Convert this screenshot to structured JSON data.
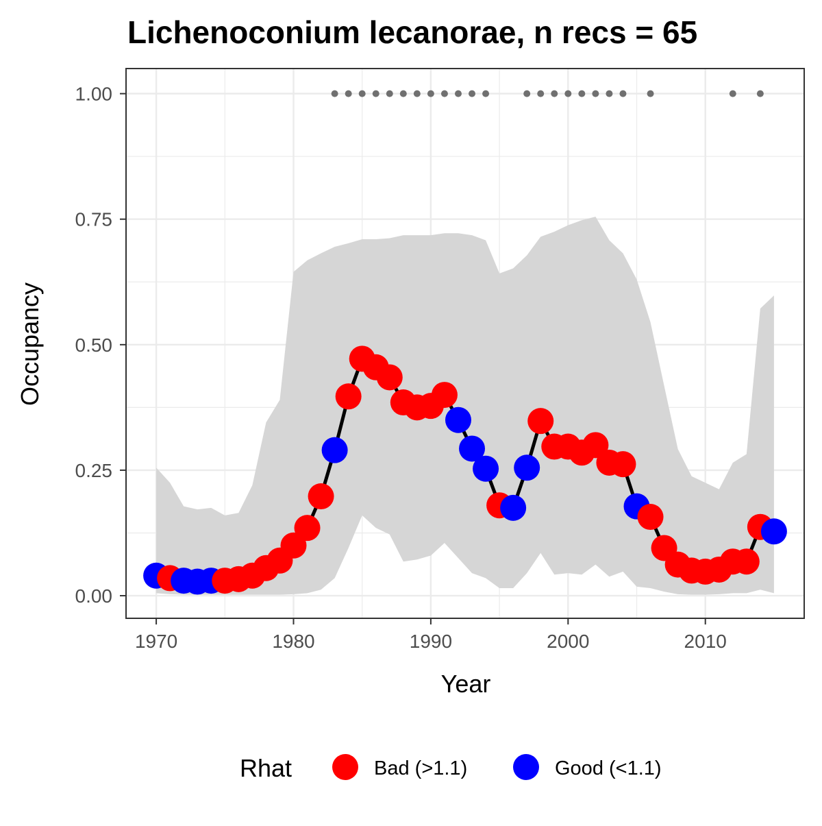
{
  "chart_data": {
    "type": "line",
    "title": "Lichenoconium lecanorae, n recs = 65",
    "xlabel": "Year",
    "ylabel": "Occupancy",
    "xlim": [
      1967.8,
      2017.2
    ],
    "ylim": [
      -0.045,
      1.05
    ],
    "x_ticks": [
      1970,
      1980,
      1990,
      2000,
      2010
    ],
    "x_tick_labels": [
      "1970",
      "1980",
      "1990",
      "2000",
      "2010"
    ],
    "y_ticks": [
      0,
      0.25,
      0.5,
      0.75,
      1.0
    ],
    "y_tick_labels": [
      "0.00",
      "0.25",
      "0.50",
      "0.75",
      "1.00"
    ],
    "grid": true,
    "legend": {
      "title": "Rhat",
      "position": "bottom",
      "entries": [
        {
          "label": "Bad (>1.1)",
          "color": "#ff0000"
        },
        {
          "label": "Good (<1.1)",
          "color": "#0000ff"
        }
      ]
    },
    "colors": {
      "bad": "#ff0000",
      "good": "#0000ff",
      "line": "#000000",
      "ribbon": "#d6d6d6",
      "records": "#707070"
    },
    "series": [
      {
        "x": [
          1970,
          1971,
          1972,
          1973,
          1974,
          1975,
          1976,
          1977,
          1978,
          1979,
          1980,
          1981,
          1982,
          1983,
          1984,
          1985,
          1986,
          1987,
          1988,
          1989,
          1990,
          1991,
          1992,
          1993,
          1994,
          1995,
          1996,
          1997,
          1998,
          1999,
          2000,
          2001,
          2002,
          2003,
          2004,
          2005,
          2006,
          2007,
          2008,
          2009,
          2010,
          2011,
          2012,
          2013,
          2014,
          2015
        ],
        "values": [
          0.04,
          0.035,
          0.03,
          0.028,
          0.03,
          0.03,
          0.033,
          0.04,
          0.055,
          0.07,
          0.1,
          0.135,
          0.198,
          0.29,
          0.397,
          0.472,
          0.455,
          0.435,
          0.385,
          0.375,
          0.378,
          0.4,
          0.35,
          0.293,
          0.253,
          0.18,
          0.175,
          0.255,
          0.348,
          0.297,
          0.297,
          0.285,
          0.3,
          0.265,
          0.262,
          0.178,
          0.157,
          0.095,
          0.062,
          0.05,
          0.048,
          0.052,
          0.068,
          0.068,
          0.137,
          0.128
        ],
        "rhat": [
          "Good",
          "Bad",
          "Good",
          "Good",
          "Good",
          "Bad",
          "Bad",
          "Bad",
          "Bad",
          "Bad",
          "Bad",
          "Bad",
          "Bad",
          "Good",
          "Bad",
          "Bad",
          "Bad",
          "Bad",
          "Bad",
          "Bad",
          "Bad",
          "Bad",
          "Good",
          "Good",
          "Good",
          "Bad",
          "Good",
          "Good",
          "Bad",
          "Bad",
          "Bad",
          "Bad",
          "Bad",
          "Bad",
          "Bad",
          "Good",
          "Bad",
          "Bad",
          "Bad",
          "Bad",
          "Bad",
          "Bad",
          "Bad",
          "Bad",
          "Bad",
          "Good"
        ],
        "lower": [
          0.005,
          0.003,
          0.002,
          0.002,
          0.002,
          0.002,
          0.002,
          0.002,
          0.002,
          0.002,
          0.003,
          0.005,
          0.012,
          0.035,
          0.095,
          0.16,
          0.135,
          0.122,
          0.068,
          0.072,
          0.08,
          0.105,
          0.075,
          0.045,
          0.035,
          0.015,
          0.015,
          0.045,
          0.085,
          0.042,
          0.045,
          0.042,
          0.062,
          0.038,
          0.048,
          0.018,
          0.015,
          0.008,
          0.003,
          0.002,
          0.002,
          0.003,
          0.005,
          0.005,
          0.012,
          0.005
        ],
        "upper": [
          0.255,
          0.225,
          0.178,
          0.172,
          0.175,
          0.16,
          0.165,
          0.22,
          0.345,
          0.39,
          0.645,
          0.668,
          0.682,
          0.695,
          0.702,
          0.71,
          0.71,
          0.712,
          0.718,
          0.718,
          0.718,
          0.722,
          0.722,
          0.718,
          0.708,
          0.642,
          0.652,
          0.678,
          0.715,
          0.725,
          0.738,
          0.748,
          0.755,
          0.708,
          0.682,
          0.63,
          0.545,
          0.418,
          0.292,
          0.238,
          0.225,
          0.212,
          0.265,
          0.282,
          0.572,
          0.598
        ]
      }
    ],
    "record_years": [
      1983,
      1984,
      1985,
      1986,
      1987,
      1988,
      1989,
      1990,
      1991,
      1992,
      1993,
      1994,
      1997,
      1998,
      1999,
      2000,
      2001,
      2002,
      2003,
      2004,
      2006,
      2012,
      2014
    ],
    "record_y": 1.0
  }
}
